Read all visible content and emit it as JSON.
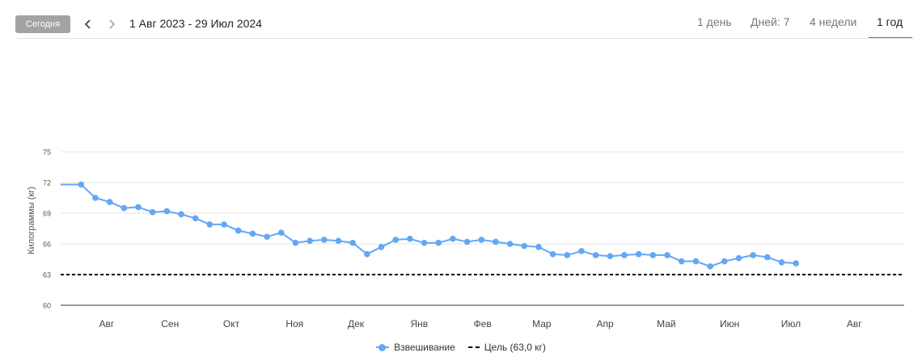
{
  "toolbar": {
    "today_label": "Сегодня",
    "prev_icon": "chevron-left-icon",
    "next_icon": "chevron-right-icon",
    "date_range": "1 Авг 2023 - 29 Июл 2024",
    "tabs": [
      "1 день",
      "Дней: 7",
      "4 недели",
      "1 год"
    ],
    "active_tab": "1 год"
  },
  "colors": {
    "series": "#63a7f5",
    "goal": "#000000",
    "active_tab_underline": "#3a80d0"
  },
  "chart_data": {
    "type": "line",
    "ylabel": "Килограммы (кг)",
    "ylim": [
      60,
      75
    ],
    "yticks": [
      60,
      63,
      66,
      69,
      72,
      75
    ],
    "x_range": [
      "2023-07-15",
      "2024-08-31"
    ],
    "month_labels": [
      {
        "label": "Авг",
        "date": "2023-08-01"
      },
      {
        "label": "Сен",
        "date": "2023-09-01"
      },
      {
        "label": "Окт",
        "date": "2023-10-01"
      },
      {
        "label": "Ноя",
        "date": "2023-11-01"
      },
      {
        "label": "Дек",
        "date": "2023-12-01"
      },
      {
        "label": "Янв",
        "date": "2024-01-01"
      },
      {
        "label": "Фев",
        "date": "2024-02-01"
      },
      {
        "label": "Мар",
        "date": "2024-03-01"
      },
      {
        "label": "Апр",
        "date": "2024-04-01"
      },
      {
        "label": "Май",
        "date": "2024-05-01"
      },
      {
        "label": "Июн",
        "date": "2024-06-01"
      },
      {
        "label": "Июл",
        "date": "2024-07-01"
      },
      {
        "label": "Авг",
        "date": "2024-08-01"
      }
    ],
    "series": [
      {
        "name": "Взвешивание",
        "x": [
          "2023-07-25",
          "2023-08-01",
          "2023-08-08",
          "2023-08-15",
          "2023-08-22",
          "2023-08-29",
          "2023-09-05",
          "2023-09-12",
          "2023-09-19",
          "2023-09-26",
          "2023-10-03",
          "2023-10-10",
          "2023-10-17",
          "2023-10-24",
          "2023-10-31",
          "2023-11-07",
          "2023-11-14",
          "2023-11-21",
          "2023-11-28",
          "2023-12-05",
          "2023-12-12",
          "2023-12-19",
          "2023-12-26",
          "2024-01-02",
          "2024-01-09",
          "2024-01-16",
          "2024-01-23",
          "2024-01-30",
          "2024-02-06",
          "2024-02-13",
          "2024-02-20",
          "2024-02-27",
          "2024-03-05",
          "2024-03-12",
          "2024-03-19",
          "2024-03-26",
          "2024-04-02",
          "2024-04-09",
          "2024-04-16",
          "2024-04-23",
          "2024-04-30",
          "2024-05-07",
          "2024-05-14",
          "2024-05-21",
          "2024-05-28",
          "2024-06-04",
          "2024-06-11",
          "2024-06-18",
          "2024-06-25",
          "2024-07-02",
          "2024-07-09",
          "2024-07-16"
        ],
        "y": [
          71.8,
          70.5,
          70.1,
          69.5,
          69.6,
          69.1,
          69.2,
          68.9,
          68.5,
          67.9,
          67.9,
          67.3,
          67.0,
          66.7,
          67.1,
          66.1,
          66.3,
          66.4,
          66.3,
          66.1,
          65.0,
          65.7,
          66.4,
          66.5,
          66.1,
          66.1,
          66.5,
          66.2,
          66.4,
          66.2,
          66.0,
          65.8,
          65.7,
          65.0,
          64.9,
          65.3,
          64.9,
          64.8,
          64.9,
          65.0,
          64.9,
          64.9,
          64.3,
          64.3,
          63.8,
          64.3,
          64.6,
          64.9,
          64.7,
          64.2,
          64.1,
          null
        ]
      },
      {
        "name": "Цель (63,0 кг)",
        "value": 63
      }
    ],
    "legend": {
      "position": "bottom",
      "entries": [
        "Взвешивание",
        "Цель (63,0 кг)"
      ]
    },
    "grid": true
  }
}
